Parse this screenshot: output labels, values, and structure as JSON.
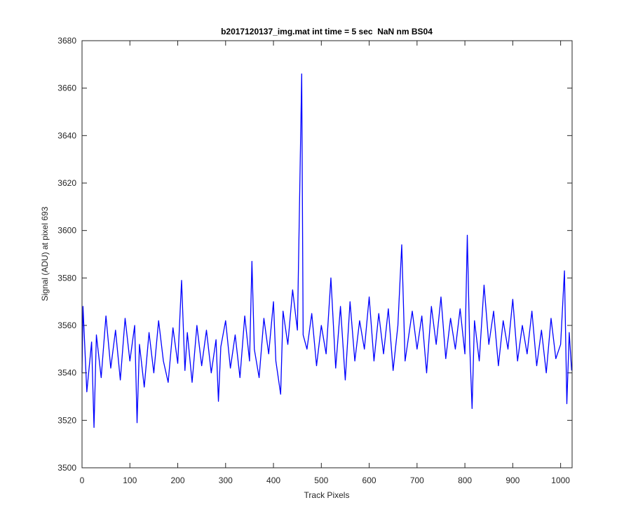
{
  "chart_data": {
    "type": "line",
    "title": "b2017120137_img.mat int time = 5 sec  NaN nm BS04",
    "x_label": "Track Pixels",
    "y_label": "Signal (ADU) at pixel 693",
    "xlim": [
      0,
      1024
    ],
    "ylim": [
      3500,
      3680
    ],
    "xticks": [
      0,
      100,
      200,
      300,
      400,
      500,
      600,
      700,
      800,
      900,
      1000
    ],
    "yticks": [
      3500,
      3520,
      3540,
      3560,
      3580,
      3600,
      3620,
      3640,
      3660,
      3680
    ],
    "grid": false,
    "x": [
      0,
      2,
      10,
      20,
      25,
      30,
      40,
      50,
      60,
      70,
      80,
      90,
      100,
      110,
      115,
      120,
      130,
      140,
      150,
      160,
      170,
      180,
      190,
      200,
      208,
      215,
      220,
      230,
      240,
      250,
      260,
      270,
      280,
      285,
      290,
      300,
      310,
      320,
      330,
      340,
      350,
      355,
      360,
      370,
      380,
      390,
      400,
      405,
      415,
      420,
      430,
      440,
      450,
      459,
      462,
      470,
      480,
      490,
      500,
      510,
      520,
      530,
      540,
      550,
      560,
      570,
      580,
      590,
      600,
      610,
      620,
      630,
      640,
      650,
      660,
      668,
      675,
      690,
      700,
      710,
      720,
      730,
      740,
      750,
      760,
      770,
      780,
      790,
      800,
      805,
      810,
      815,
      820,
      830,
      840,
      850,
      860,
      870,
      880,
      890,
      900,
      910,
      920,
      930,
      940,
      950,
      960,
      970,
      980,
      990,
      1000,
      1008,
      1013,
      1018,
      1023
    ],
    "series": [
      {
        "color": "#0000ff",
        "values": [
          3540,
          3568,
          3532,
          3553,
          3517,
          3556,
          3538,
          3564,
          3542,
          3558,
          3537,
          3563,
          3545,
          3560,
          3519,
          3552,
          3534,
          3557,
          3540,
          3562,
          3545,
          3536,
          3559,
          3544,
          3579,
          3541,
          3557,
          3536,
          3560,
          3543,
          3558,
          3540,
          3554,
          3528,
          3551,
          3562,
          3542,
          3556,
          3538,
          3564,
          3545,
          3587,
          3550,
          3538,
          3563,
          3548,
          3570,
          3545,
          3531,
          3566,
          3552,
          3575,
          3558,
          3666,
          3556,
          3550,
          3565,
          3543,
          3560,
          3548,
          3580,
          3542,
          3568,
          3537,
          3570,
          3545,
          3562,
          3550,
          3572,
          3545,
          3565,
          3548,
          3567,
          3541,
          3560,
          3594,
          3545,
          3566,
          3550,
          3564,
          3540,
          3568,
          3552,
          3572,
          3546,
          3563,
          3550,
          3567,
          3548,
          3598,
          3552,
          3525,
          3562,
          3545,
          3577,
          3552,
          3566,
          3543,
          3562,
          3550,
          3571,
          3545,
          3560,
          3548,
          3566,
          3543,
          3558,
          3540,
          3563,
          3546,
          3552,
          3583,
          3527,
          3557,
          3541
        ]
      }
    ]
  }
}
